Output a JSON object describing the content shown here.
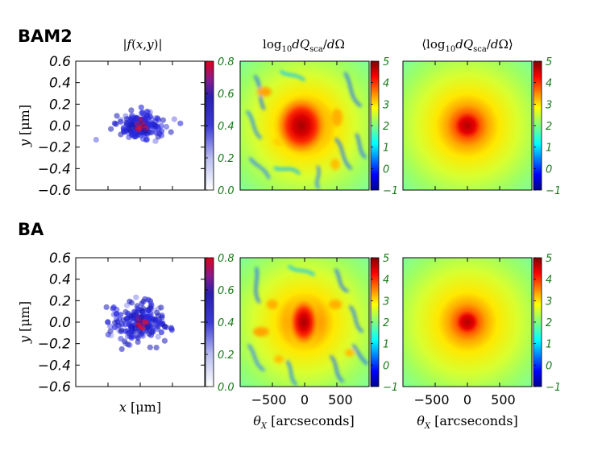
{
  "figure": {
    "row_labels": [
      "BAM2",
      "BA"
    ],
    "col_titles": [
      "|f(x,y)|",
      "log10 dQsca/dΩ",
      "⟨log10 dQsca/dΩ⟩"
    ],
    "ylabel": "y [μm]",
    "xlabel_left": "x [μm]",
    "xlabel_right": "θX [arcseconds]"
  },
  "chart_data": [
    {
      "type": "scatter",
      "name": "BAM2 |f(x,y)|",
      "ylabel": "y [μm]",
      "xlabel": "",
      "xlim": [
        -0.6,
        0.6
      ],
      "ylim": [
        -0.6,
        0.6
      ],
      "yticks": [
        "0.6",
        "0.4",
        "0.2",
        "0.0",
        "−0.2",
        "−0.4",
        "−0.6"
      ],
      "colorbar": {
        "range": [
          0.0,
          0.8
        ],
        "ticks": [
          "0.8",
          "0.6",
          "0.4",
          "0.2",
          "0.0"
        ],
        "cmap": "white-blue-red"
      },
      "cluster": {
        "center": [
          0.0,
          0.0
        ],
        "spread_x": 0.16,
        "spread_y": 0.09
      }
    },
    {
      "type": "heatmap",
      "name": "BAM2 log10 dQsca/dΩ",
      "xlim": [
        -900,
        900
      ],
      "ylim": [
        -900,
        900
      ],
      "colorbar": {
        "range": [
          -1,
          5
        ],
        "ticks": [
          "5",
          "4",
          "3",
          "2",
          "1",
          "0",
          "−1"
        ],
        "cmap": "jet"
      },
      "peak": {
        "center": [
          0,
          0
        ],
        "value": 5.0
      }
    },
    {
      "type": "heatmap",
      "name": "BAM2 ⟨log10 dQsca/dΩ⟩",
      "xlim": [
        -900,
        900
      ],
      "ylim": [
        -900,
        900
      ],
      "colorbar": {
        "range": [
          -1,
          5
        ],
        "ticks": [
          "5",
          "4",
          "3",
          "2",
          "1",
          "0",
          "−1"
        ],
        "cmap": "jet"
      },
      "peak": {
        "center": [
          0,
          0
        ],
        "value": 5.0
      }
    },
    {
      "type": "scatter",
      "name": "BA |f(x,y)|",
      "ylabel": "y [μm]",
      "xlabel": "x [μm]",
      "xlim": [
        -0.6,
        0.6
      ],
      "ylim": [
        -0.6,
        0.6
      ],
      "yticks": [
        "0.6",
        "0.4",
        "0.2",
        "0.0",
        "−0.2",
        "−0.4",
        "−0.6"
      ],
      "colorbar": {
        "range": [
          0.0,
          0.8
        ],
        "ticks": [
          "0.8",
          "0.6",
          "0.4",
          "0.2",
          "0.0"
        ],
        "cmap": "white-blue-red"
      },
      "cluster": {
        "center": [
          0.0,
          0.0
        ],
        "spread_x": 0.22,
        "spread_y": 0.16
      }
    },
    {
      "type": "heatmap",
      "name": "BA log10 dQsca/dΩ",
      "xlabel": "θX [arcseconds]",
      "xlim": [
        -900,
        900
      ],
      "ylim": [
        -900,
        900
      ],
      "xticks": [
        "−500",
        "0",
        "500"
      ],
      "colorbar": {
        "range": [
          -1,
          5
        ],
        "ticks": [
          "5",
          "4",
          "3",
          "2",
          "1",
          "0",
          "−1"
        ],
        "cmap": "jet"
      },
      "peak": {
        "center": [
          0,
          0
        ],
        "value": 5.0
      }
    },
    {
      "type": "heatmap",
      "name": "BA ⟨log10 dQsca/dΩ⟩",
      "xlabel": "θX [arcseconds]",
      "xlim": [
        -900,
        900
      ],
      "ylim": [
        -900,
        900
      ],
      "xticks": [
        "−500",
        "0",
        "500"
      ],
      "colorbar": {
        "range": [
          -1,
          5
        ],
        "ticks": [
          "5",
          "4",
          "3",
          "2",
          "1",
          "0",
          "−1"
        ],
        "cmap": "jet"
      },
      "peak": {
        "center": [
          0,
          0
        ],
        "value": 5.0
      }
    }
  ]
}
